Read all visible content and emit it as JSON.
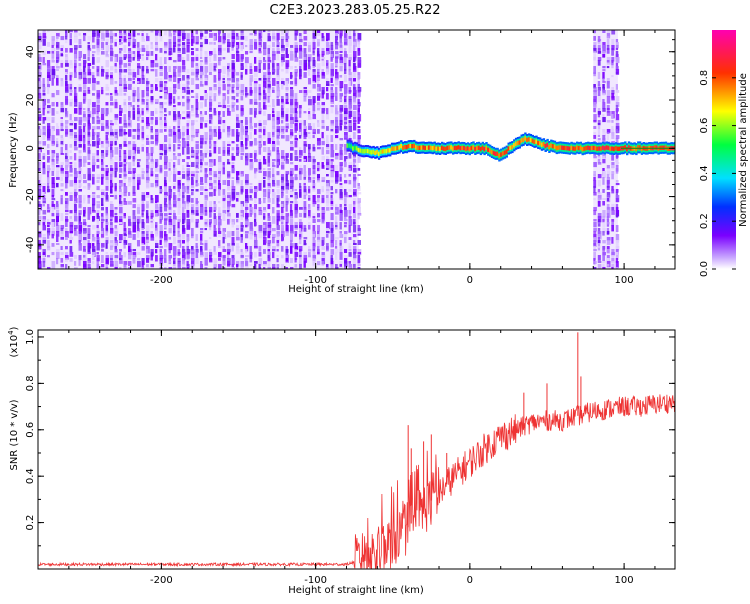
{
  "title": "C2E3.2023.283.05.25.R22",
  "colorbar": {
    "label": "Normalized spectral amplitude",
    "ticks": [
      "0.0",
      "0.2",
      "0.4",
      "0.6",
      "0.8"
    ],
    "tick_values": [
      0.0,
      0.2,
      0.4,
      0.6,
      0.8
    ],
    "range": [
      0,
      1
    ],
    "colors": [
      "#ffffff",
      "#7a00ff",
      "#0030ff",
      "#00e0ff",
      "#00ff40",
      "#ffff00",
      "#ff3000",
      "#ff00b0"
    ]
  },
  "chart_data": [
    {
      "type": "heatmap",
      "xlabel": "Height of straight line (km)",
      "ylabel": "Frequency (Hz)",
      "xlim": [
        -280,
        133
      ],
      "ylim": [
        -50,
        49
      ],
      "x_ticks": [
        -200,
        -100,
        0,
        100
      ],
      "x_tick_labels": [
        "-200",
        "-100",
        "0",
        "100"
      ],
      "y_ticks": [
        -40,
        -20,
        0,
        20,
        40
      ],
      "y_tick_labels": [
        "-40",
        "-20",
        "0",
        "20",
        "40"
      ],
      "noise_regions": [
        {
          "x_from": -280,
          "x_to": -72,
          "amplitude": 0.15
        },
        {
          "x_from": 80,
          "x_to": 96,
          "amplitude": 0.15
        }
      ],
      "signal_track": {
        "x": [
          -80,
          -75,
          -70,
          -60,
          -50,
          -40,
          -30,
          -20,
          -10,
          0,
          10,
          15,
          20,
          25,
          30,
          35,
          40,
          45,
          50,
          60,
          70,
          78,
          96,
          105,
          115,
          125,
          133
        ],
        "freq": [
          1,
          0,
          -1,
          -2,
          0,
          1,
          0,
          0,
          0,
          0,
          0,
          -2,
          -3,
          0,
          2,
          4,
          3,
          2,
          1,
          0,
          0,
          0,
          0,
          0,
          0,
          0,
          0
        ],
        "amplitude": [
          0.55,
          0.6,
          0.65,
          0.7,
          0.75,
          0.8,
          0.8,
          0.8,
          0.82,
          0.85,
          0.85,
          0.85,
          0.85,
          0.8,
          0.8,
          0.8,
          0.8,
          0.8,
          0.85,
          0.85,
          0.85,
          0.85,
          0.85,
          0.85,
          0.85,
          0.85,
          0.85
        ]
      }
    },
    {
      "type": "line",
      "xlabel": "Height of straight line (km)",
      "ylabel": "SNR (10 * v/v)",
      "y_scale_label": "(x10",
      "y_scale_exp": "4",
      "y_scale_close": ")",
      "xlim": [
        -280,
        133
      ],
      "ylim": [
        0,
        1.03
      ],
      "x_ticks": [
        -200,
        -100,
        0,
        100
      ],
      "x_tick_labels": [
        "-200",
        "-100",
        "0",
        "100"
      ],
      "y_ticks": [
        0.2,
        0.4,
        0.6,
        0.8,
        1.0
      ],
      "y_tick_labels": [
        "0.2",
        "0.4",
        "0.6",
        "0.8",
        "1.0"
      ],
      "series": [
        {
          "color": "#ee3333",
          "x": [
            -280,
            -200,
            -120,
            -80,
            -60,
            -50,
            -40,
            -30,
            -20,
            -10,
            0,
            10,
            20,
            30,
            40,
            50,
            60,
            70,
            80,
            90,
            100,
            110,
            120,
            133
          ],
          "values": [
            0.02,
            0.02,
            0.02,
            0.02,
            0.06,
            0.12,
            0.18,
            0.26,
            0.33,
            0.4,
            0.46,
            0.52,
            0.57,
            0.6,
            0.63,
            0.64,
            0.64,
            0.66,
            0.68,
            0.69,
            0.7,
            0.7,
            0.71,
            0.72
          ],
          "spikes": [
            [
              -40,
              0.62
            ],
            [
              -38,
              0.52
            ],
            [
              -30,
              0.55
            ],
            [
              -25,
              0.58
            ],
            [
              -15,
              0.5
            ],
            [
              35,
              0.76
            ],
            [
              50,
              0.8
            ],
            [
              70,
              1.02
            ],
            [
              72,
              0.83
            ]
          ]
        }
      ]
    }
  ]
}
